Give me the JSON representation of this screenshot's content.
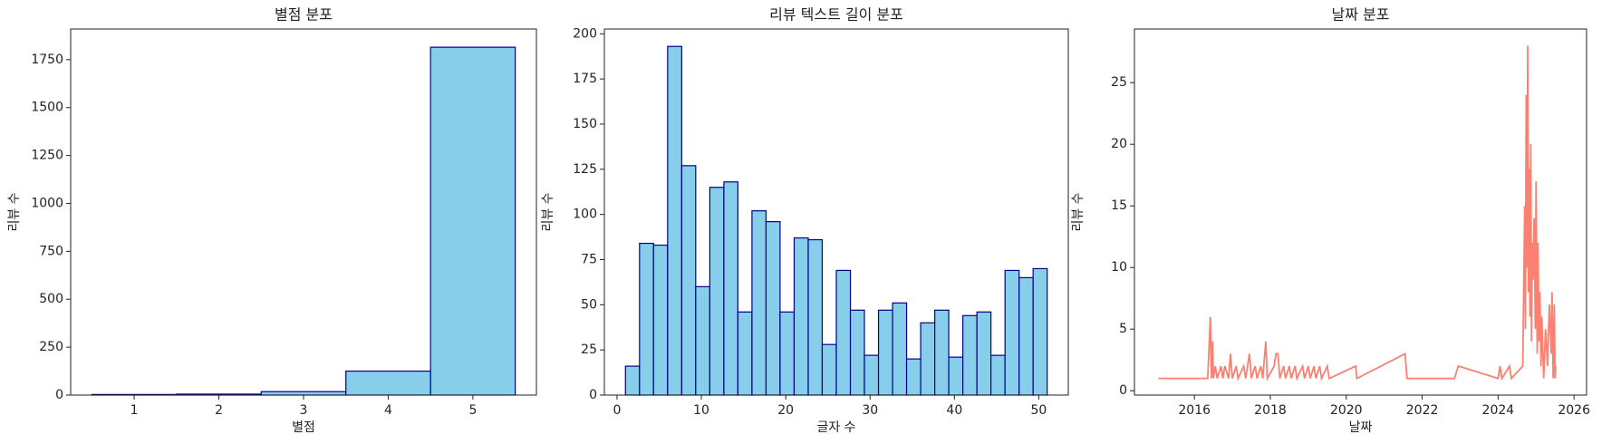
{
  "chart_data": [
    {
      "type": "histogram",
      "title": "별점 분포",
      "x_label": "별점",
      "y_label": "리뷰 수",
      "bins": [
        0.5,
        1.5,
        2.5,
        3.5,
        4.5,
        5.5
      ],
      "values": [
        3,
        5,
        18,
        125,
        1815
      ],
      "color": "#87ceeb",
      "edge_color": "#00008b",
      "xlim": [
        0.25,
        5.75
      ],
      "xticks": [
        1,
        2,
        3,
        4,
        5
      ],
      "ylim": [
        0,
        1910
      ],
      "yticks": [
        0,
        250,
        500,
        750,
        1000,
        1250,
        1500,
        1750
      ]
    },
    {
      "type": "histogram",
      "title": "리뷰 텍스트 길이 분포",
      "x_label": "글자 수",
      "y_label": "리뷰 수",
      "bins": [
        1,
        2.67,
        4.33,
        6,
        7.67,
        9.33,
        11,
        12.67,
        14.33,
        16,
        17.67,
        19.33,
        21,
        22.67,
        24.33,
        26,
        27.67,
        29.33,
        31,
        32.67,
        34.33,
        36,
        37.67,
        39.33,
        41,
        42.67,
        44.33,
        46,
        47.67,
        49.33,
        51
      ],
      "values": [
        16,
        84,
        83,
        193,
        127,
        60,
        115,
        118,
        46,
        102,
        96,
        46,
        87,
        86,
        28,
        69,
        47,
        22,
        47,
        51,
        20,
        40,
        47,
        21,
        44,
        46,
        22,
        69,
        65,
        70
      ],
      "color": "#87ceeb",
      "edge_color": "#00008b",
      "xlim": [
        -1.5,
        53.5
      ],
      "xticks": [
        0,
        10,
        20,
        30,
        40,
        50
      ],
      "ylim": [
        0,
        202.65
      ],
      "yticks": [
        0,
        25,
        50,
        75,
        100,
        125,
        150,
        175,
        200
      ]
    },
    {
      "type": "line",
      "title": "날짜 분포",
      "x_label": "날짜",
      "y_label": "리뷰 수",
      "color": "#fa8072",
      "x": [
        2015.05,
        2016.35,
        2016.38,
        2016.42,
        2016.45,
        2016.48,
        2016.5,
        2016.55,
        2016.6,
        2016.7,
        2016.75,
        2016.8,
        2016.9,
        2016.95,
        2017.0,
        2017.1,
        2017.15,
        2017.3,
        2017.35,
        2017.45,
        2017.5,
        2017.6,
        2017.65,
        2017.75,
        2017.8,
        2017.88,
        2017.92,
        2018.1,
        2018.15,
        2018.2,
        2018.25,
        2018.35,
        2018.4,
        2018.5,
        2018.55,
        2018.65,
        2018.7,
        2018.85,
        2018.9,
        2019.0,
        2019.05,
        2019.15,
        2019.2,
        2019.3,
        2019.35,
        2019.5,
        2019.55,
        2020.25,
        2020.28,
        2021.55,
        2021.6,
        2022.85,
        2022.95,
        2024.0,
        2024.05,
        2024.1,
        2024.3,
        2024.35,
        2024.65,
        2024.7,
        2024.72,
        2024.74,
        2024.76,
        2024.78,
        2024.8,
        2024.82,
        2024.84,
        2024.86,
        2024.88,
        2024.9,
        2024.92,
        2024.95,
        2024.98,
        2025.0,
        2025.03,
        2025.05,
        2025.08,
        2025.1,
        2025.13,
        2025.15,
        2025.2,
        2025.25,
        2025.3,
        2025.35,
        2025.4,
        2025.42,
        2025.45,
        2025.48,
        2025.5,
        2025.52
      ],
      "values": [
        1,
        1,
        3,
        6,
        1,
        4,
        1,
        2,
        1,
        2,
        1,
        2,
        1,
        3,
        1,
        2,
        1,
        2,
        1,
        3,
        1,
        2,
        1,
        2,
        1,
        4,
        1,
        2,
        3,
        3,
        1,
        2,
        1,
        2,
        1,
        2,
        1,
        2,
        1,
        2,
        1,
        2,
        1,
        2,
        1,
        2,
        1,
        2,
        1,
        3,
        1,
        1,
        2,
        1,
        2,
        1,
        2,
        1,
        2,
        15,
        5,
        24,
        10,
        28,
        8,
        18,
        6,
        20,
        4,
        12,
        9,
        14,
        5,
        17,
        3,
        12,
        4,
        8,
        2,
        6,
        1,
        5,
        2,
        7,
        3,
        8,
        1,
        7,
        1,
        2
      ],
      "xlim": [
        2014.42,
        2026.33
      ],
      "xticks": [
        2016,
        2018,
        2020,
        2022,
        2024,
        2026
      ],
      "ylim": [
        -0.35,
        29.35
      ],
      "yticks": [
        0,
        5,
        10,
        15,
        20,
        25
      ]
    }
  ]
}
